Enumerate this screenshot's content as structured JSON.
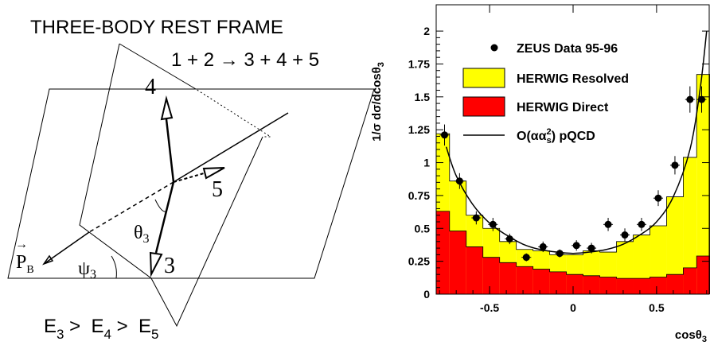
{
  "diagram": {
    "title": "THREE-BODY REST FRAME",
    "reaction": "1 + 2 → 3 + 4 + 5",
    "ordering": {
      "parts": [
        "E",
        "3",
        " >  ",
        "E",
        "4",
        " >  ",
        "E",
        "5"
      ]
    },
    "labels": {
      "p4": "4",
      "p5": "5",
      "p3": "3",
      "theta": "θ",
      "theta_sub": "3",
      "psi": "ψ",
      "psi_sub": "3",
      "pb": "P",
      "pb_sub": "B",
      "pb_vec": "→"
    }
  },
  "chart_data": {
    "type": "bar",
    "xlabel": "cosθ",
    "xlabel_sub": "3",
    "ylabel": "1/σ dσ/dcosθ",
    "ylabel_sub": "3",
    "xlim": [
      -0.82,
      0.82
    ],
    "ylim": [
      0,
      2.2
    ],
    "xticks": [
      -0.5,
      0,
      0.5
    ],
    "xticklabels": [
      "-0.5",
      "0",
      "0.5"
    ],
    "yticks": [
      0,
      0.25,
      0.5,
      0.75,
      1,
      1.25,
      1.5,
      1.75,
      2
    ],
    "yticklabels": [
      "0",
      "0.25",
      "0.5",
      "0.75",
      "1",
      "1.25",
      "1.5",
      "1.75",
      "2"
    ],
    "bin_edges": [
      -0.82,
      -0.74,
      -0.64,
      -0.54,
      -0.44,
      -0.34,
      -0.24,
      -0.14,
      -0.04,
      0.06,
      0.16,
      0.26,
      0.36,
      0.46,
      0.56,
      0.66,
      0.74,
      0.82
    ],
    "legend": {
      "placement": "top-right",
      "entries": [
        "ZEUS Data 95-96",
        "HERWIG Resolved",
        "HERWIG Direct",
        "O(αα",
        "2",
        "s",
        ") pQCD"
      ]
    },
    "series": [
      {
        "name": "HERWIG Resolved",
        "kind": "histogram",
        "color": "#ffff00",
        "values": [
          1.22,
          0.86,
          0.6,
          0.5,
          0.4,
          0.34,
          0.33,
          0.3,
          0.3,
          0.33,
          0.32,
          0.4,
          0.45,
          0.52,
          0.74,
          1.04,
          1.67
        ]
      },
      {
        "name": "HERWIG Direct",
        "kind": "histogram",
        "color": "#ff0000",
        "values": [
          0.63,
          0.48,
          0.36,
          0.28,
          0.24,
          0.21,
          0.19,
          0.17,
          0.15,
          0.14,
          0.13,
          0.12,
          0.12,
          0.13,
          0.15,
          0.2,
          0.29
        ]
      },
      {
        "name": "ZEUS Data 95-96",
        "kind": "points",
        "color": "#000000",
        "x": [
          -0.77,
          -0.68,
          -0.58,
          -0.48,
          -0.38,
          -0.28,
          -0.18,
          -0.08,
          0.02,
          0.11,
          0.21,
          0.31,
          0.41,
          0.51,
          0.61,
          0.7,
          0.77
        ],
        "y": [
          1.21,
          0.86,
          0.58,
          0.53,
          0.42,
          0.28,
          0.36,
          0.31,
          0.37,
          0.35,
          0.53,
          0.45,
          0.53,
          0.73,
          0.98,
          1.48,
          1.48
        ],
        "yerr": [
          0.08,
          0.06,
          0.05,
          0.05,
          0.04,
          0.03,
          0.04,
          0.03,
          0.04,
          0.04,
          0.05,
          0.05,
          0.05,
          0.06,
          0.07,
          0.1,
          0.1
        ]
      },
      {
        "name": "O(ααs²) pQCD",
        "kind": "curve",
        "color": "#000000",
        "x": [
          -0.76,
          -0.7,
          -0.6,
          -0.5,
          -0.4,
          -0.3,
          -0.2,
          -0.1,
          0.0,
          0.1,
          0.2,
          0.3,
          0.4,
          0.5,
          0.6,
          0.7,
          0.76,
          0.8
        ],
        "y": [
          1.12,
          0.9,
          0.68,
          0.54,
          0.45,
          0.38,
          0.34,
          0.32,
          0.31,
          0.32,
          0.34,
          0.38,
          0.45,
          0.55,
          0.74,
          1.1,
          1.55,
          2.0
        ]
      }
    ]
  }
}
